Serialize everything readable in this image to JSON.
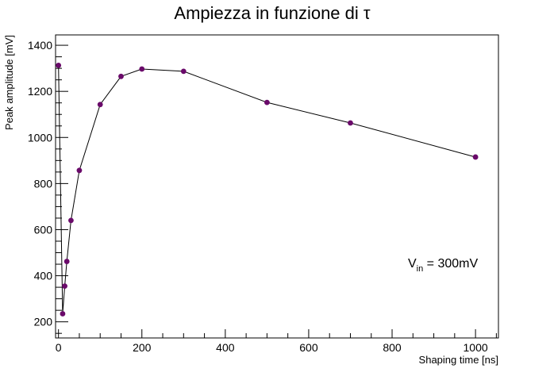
{
  "chart_data": {
    "type": "line",
    "title": "Ampiezza in funzione di τ",
    "xlabel": "Shaping time [ns]",
    "ylabel": "Peak amplitude [mV]",
    "xlim": [
      -7,
      1055
    ],
    "ylim": [
      130,
      1445
    ],
    "x_ticks": [
      0,
      200,
      400,
      600,
      800,
      1000
    ],
    "y_ticks": [
      200,
      400,
      600,
      800,
      1000,
      1200,
      1400
    ],
    "grid": false,
    "legend": "none",
    "annotation": {
      "prefix": "V",
      "subscript": "in",
      "suffix": " = 300mV"
    },
    "marker_color": "#6a0a6a",
    "line_color": "#000000",
    "series": [
      {
        "x": [
          0,
          10,
          15,
          20,
          30,
          50,
          100,
          150,
          200,
          300,
          500,
          700,
          1000
        ],
        "y": [
          1313,
          235,
          355,
          462,
          640,
          857,
          1143,
          1265,
          1297,
          1287,
          1152,
          1063,
          915
        ],
        "y_err": [
          10,
          10,
          10,
          10,
          10,
          10,
          10,
          10,
          10,
          10,
          10,
          10,
          10
        ],
        "x_err": [
          3,
          3,
          3,
          3,
          3,
          3,
          3,
          3,
          3,
          3,
          3,
          3,
          3
        ]
      }
    ]
  }
}
